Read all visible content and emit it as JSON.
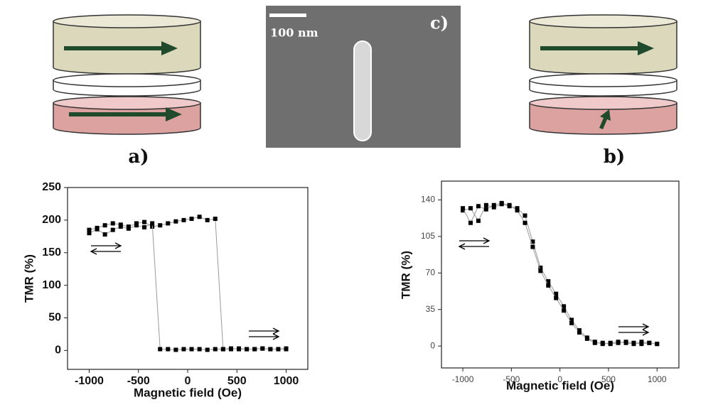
{
  "figure": {
    "panel_labels": [
      "a)",
      "b)",
      "c)"
    ],
    "scale_bar": "100 nm"
  },
  "chart_data": [
    {
      "type": "line",
      "x_label": "Magnetic field (Oe)",
      "y_label": "TMR (%)",
      "xlim": [
        -1220,
        1220
      ],
      "ylim": [
        -29,
        250
      ],
      "xticks": [
        -1000,
        -500,
        0,
        500,
        1000
      ],
      "yticks": [
        0,
        50,
        100,
        150,
        200,
        250
      ],
      "grid": false,
      "series": [
        {
          "color": "#000000",
          "line_color": "#9a9a9a",
          "x": [
            -1000,
            -920,
            -840,
            -760,
            -680,
            -600,
            -520,
            -440,
            -360,
            -280,
            -200,
            -120,
            -40,
            40,
            120,
            200,
            280,
            360,
            440,
            520,
            600,
            680,
            760,
            840,
            920,
            1000
          ],
          "values": [
            185,
            188,
            192,
            195,
            193,
            190,
            195,
            197,
            190,
            192,
            195,
            198,
            200,
            202,
            205,
            200,
            202,
            2,
            2,
            3,
            2,
            2,
            3,
            2,
            2,
            3
          ]
        },
        {
          "color": "#000000",
          "line_color": "#9a9a9a",
          "x": [
            -1000,
            -920,
            -840,
            -760,
            -680,
            -600,
            -520,
            -440,
            -360,
            -280,
            -200,
            -120,
            -40,
            40,
            120,
            200,
            280,
            360,
            440,
            520,
            600,
            680,
            760,
            840,
            920,
            1000
          ],
          "values": [
            180,
            186,
            178,
            185,
            190,
            187,
            192,
            189,
            195,
            2,
            2,
            1,
            2,
            2,
            2,
            1,
            2,
            2,
            3,
            2,
            2,
            2,
            3,
            2,
            2,
            2
          ]
        }
      ]
    },
    {
      "type": "line",
      "x_label": "Magnetic field (Oe)",
      "y_label": "TMR (%)",
      "xlim": [
        -1220,
        1225
      ],
      "ylim": [
        -21,
        158
      ],
      "xticks": [
        -1000,
        -500,
        0,
        500,
        1000
      ],
      "yticks": [
        0,
        35,
        70,
        105,
        140
      ],
      "grid": false,
      "series": [
        {
          "color": "#000000",
          "line_color": "#9a9a9a",
          "x": [
            -1000,
            -920,
            -840,
            -760,
            -680,
            -600,
            -520,
            -440,
            -360,
            -280,
            -200,
            -120,
            -40,
            40,
            120,
            200,
            280,
            360,
            440,
            520,
            600,
            680,
            760,
            840,
            920,
            1000
          ],
          "values": [
            130,
            132,
            120,
            135,
            133,
            136,
            134,
            132,
            125,
            100,
            75,
            62,
            50,
            38,
            25,
            15,
            8,
            4,
            2,
            3,
            4,
            3,
            2,
            4,
            3,
            2
          ]
        },
        {
          "color": "#000000",
          "line_color": "#9a9a9a",
          "x": [
            -1000,
            -920,
            -840,
            -760,
            -680,
            -600,
            -520,
            -440,
            -360,
            -280,
            -200,
            -120,
            -40,
            40,
            120,
            200,
            280,
            360,
            440,
            520,
            600,
            680,
            760,
            840,
            920,
            1000
          ],
          "values": [
            132,
            118,
            134,
            131,
            135,
            137,
            135,
            130,
            118,
            95,
            72,
            58,
            46,
            34,
            22,
            13,
            7,
            3,
            3,
            2,
            3,
            4,
            3,
            2,
            3,
            2
          ]
        }
      ]
    }
  ]
}
